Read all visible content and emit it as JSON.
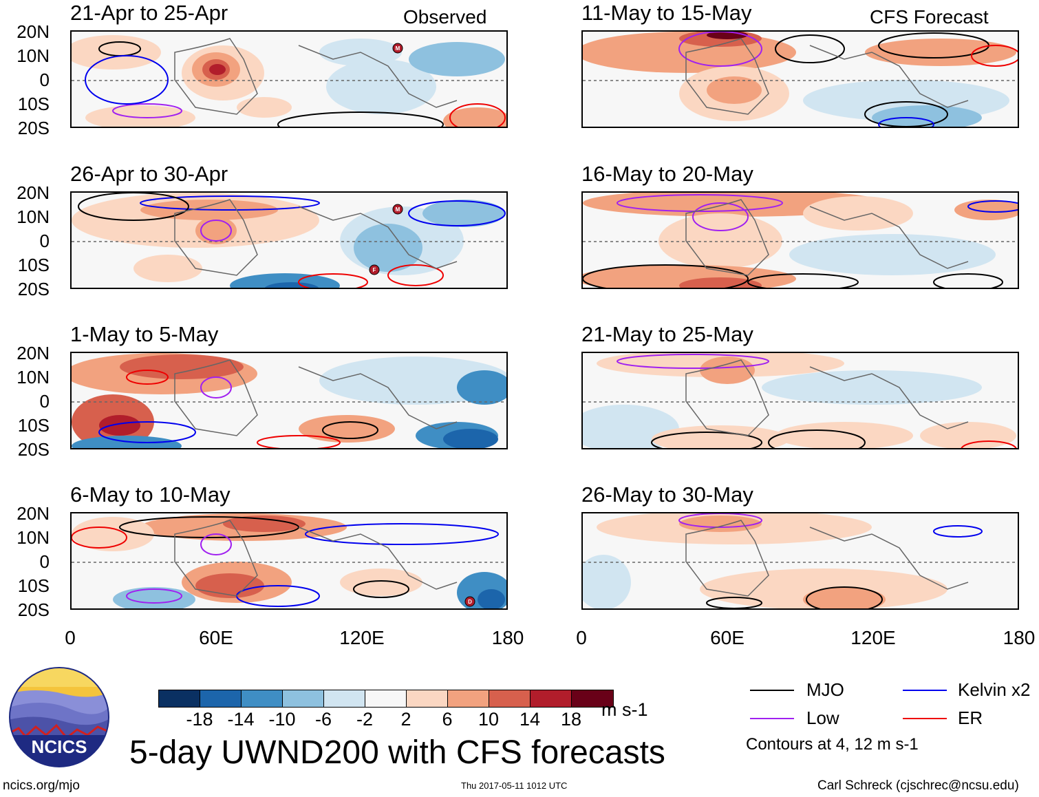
{
  "columns": {
    "observed_label": "Observed",
    "forecast_label": "CFS Forecast"
  },
  "panels_left": [
    {
      "title": "21-Apr to 25-Apr"
    },
    {
      "title": "26-Apr to 30-Apr"
    },
    {
      "title": "1-May to 5-May"
    },
    {
      "title": "6-May to 10-May"
    }
  ],
  "panels_right": [
    {
      "title": "11-May to 15-May"
    },
    {
      "title": "16-May to 20-May"
    },
    {
      "title": "21-May to 25-May"
    },
    {
      "title": "26-May to 30-May"
    }
  ],
  "lat_labels": [
    "20N",
    "10N",
    "0",
    "10S",
    "20S"
  ],
  "lon_labels": [
    "0",
    "60E",
    "120E",
    "180"
  ],
  "colorbar": {
    "colors": [
      "#0a3062",
      "#1c65ab",
      "#3f8ec4",
      "#8ec1df",
      "#d1e5f1",
      "#f7f7f7",
      "#fbd7c2",
      "#f2a27f",
      "#d7604d",
      "#b11d2b",
      "#690118"
    ],
    "ticks": [
      "-18",
      "-14",
      "-10",
      "-6",
      "-2",
      "2",
      "6",
      "10",
      "14",
      "18"
    ],
    "units": "m s-1"
  },
  "legend": {
    "items": [
      {
        "label": "MJO",
        "color": "#000000"
      },
      {
        "label": "Kelvin x2",
        "color": "#0000ee"
      },
      {
        "label": "Low",
        "color": "#a020f0"
      },
      {
        "label": "ER",
        "color": "#ee0000"
      }
    ],
    "contours_note": "Contours at 4, 12 m s-1"
  },
  "title": "5-day UWND200 with CFS forecasts",
  "logo_text": "NCICS",
  "footer": {
    "url": "ncics.org/mjo",
    "timestamp": "Thu 2017-05-11 1012 UTC",
    "credit": "Carl Schreck (cjschrec@ncsu.edu)"
  },
  "storm_markers": [
    "M",
    "M",
    "F",
    "D"
  ]
}
